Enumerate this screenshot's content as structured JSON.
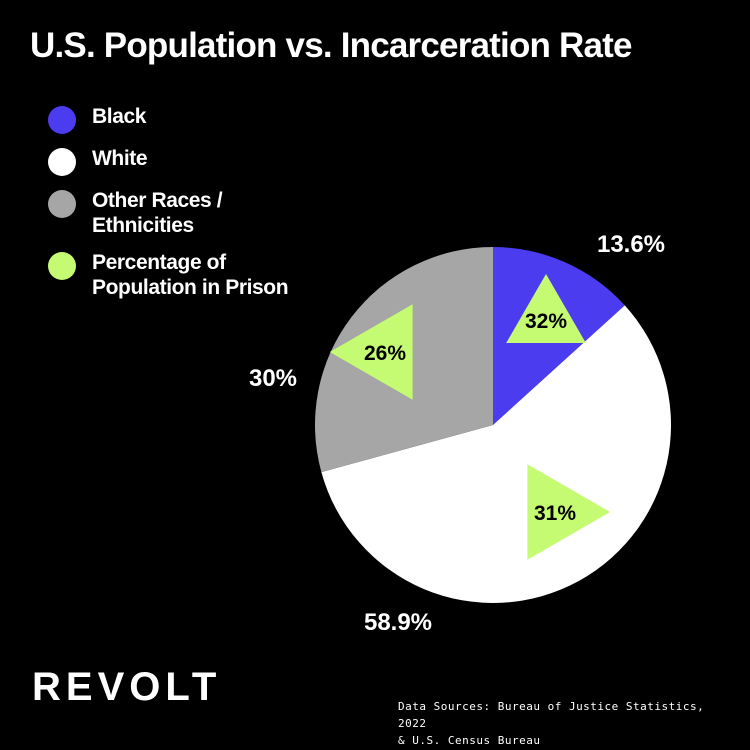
{
  "title": "U.S. Population vs. Incarceration Rate",
  "legend": [
    {
      "label": "Black",
      "color": "#4b3cf0",
      "icon": "circle"
    },
    {
      "label": "White",
      "color": "#ffffff",
      "icon": "circle"
    },
    {
      "label": "Other Races / Ethnicities",
      "color": "#a6a6a6",
      "icon": "circle"
    },
    {
      "label": "Percentage of Population in Prison",
      "color": "#c5fb72",
      "icon": "circle"
    }
  ],
  "chart_data": {
    "type": "pie",
    "title": "U.S. Population vs. Incarceration Rate",
    "legend_position": "top-left",
    "slices": [
      {
        "name": "Black",
        "value": 13.6,
        "label": "13.6%",
        "prison_rate": 32,
        "prison_label": "32%",
        "color": "#4b3cf0"
      },
      {
        "name": "White",
        "value": 58.9,
        "label": "58.9%",
        "prison_rate": 31,
        "prison_label": "31%",
        "color": "#ffffff"
      },
      {
        "name": "Other Races / Ethnicities",
        "value": 30,
        "label": "30%",
        "prison_rate": 26,
        "prison_label": "26%",
        "color": "#a6a6a6"
      }
    ],
    "prison_marker_color": "#c5fb72"
  },
  "logo": "REVOLT",
  "source_line1": "Data Sources: Bureau of Justice Statistics, 2022",
  "source_line2": "& U.S. Census Bureau"
}
